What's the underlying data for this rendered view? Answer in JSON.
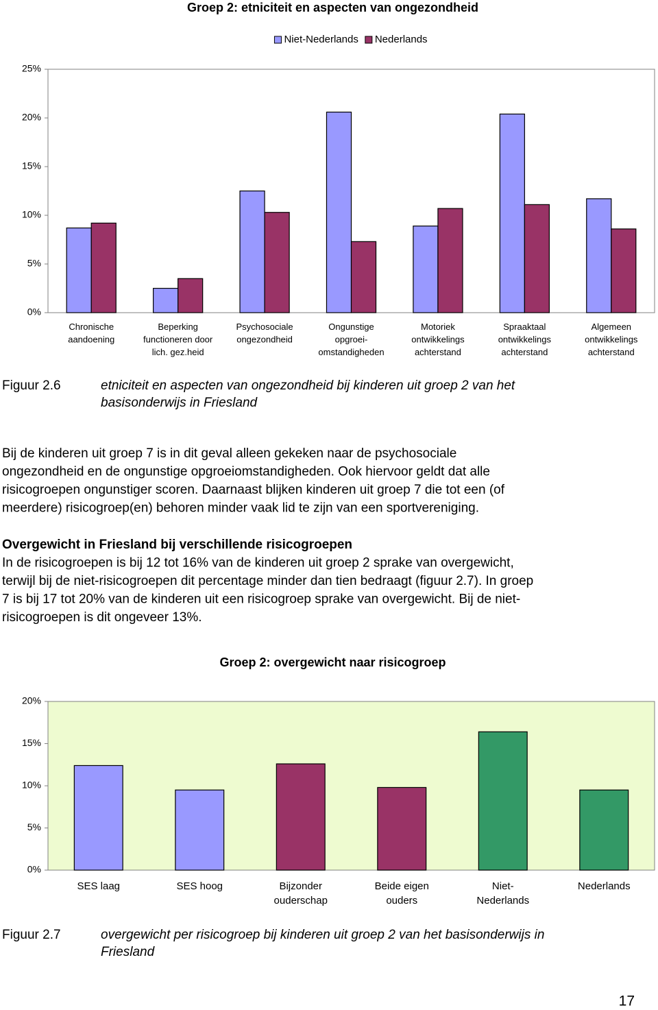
{
  "chart_data": [
    {
      "type": "bar",
      "title": "Groep 2: etniciteit en aspecten van ongezondheid",
      "categories": [
        "Chronische\naandoening",
        "Beperking\nfunctioneren door\nlich. gez.heid",
        "Psychosociale\nongezondheid",
        "Ongunstige\nopgroei-\nomstandigheden",
        "Motoriek\nontwikkelings\nachterstand",
        "Spraaktaal\nontwikkelings\nachterstand",
        "Algemeen\nontwikkelings\nachterstand"
      ],
      "series": [
        {
          "name": "Niet-Nederlands",
          "color": "#9999ff",
          "values": [
            8.7,
            2.5,
            12.5,
            20.6,
            8.9,
            20.4,
            11.7
          ]
        },
        {
          "name": "Nederlands",
          "color": "#993366",
          "values": [
            9.2,
            3.5,
            10.3,
            7.3,
            10.7,
            11.1,
            8.6
          ]
        }
      ],
      "ylim": [
        0,
        25
      ],
      "yticks": [
        {
          "value": 0,
          "label": "0%"
        },
        {
          "value": 5,
          "label": "5%"
        },
        {
          "value": 10,
          "label": "10%"
        },
        {
          "value": 15,
          "label": "15%"
        },
        {
          "value": 20,
          "label": "20%"
        },
        {
          "value": 25,
          "label": "25%"
        }
      ],
      "legend": "top",
      "grid": false,
      "plot_background": "#ffffff"
    },
    {
      "type": "bar",
      "title": "Groep 2: overgewicht naar risicogroep",
      "categories": [
        "SES laag",
        "SES hoog",
        "Bijzonder\nouderschap",
        "Beide eigen\nouders",
        "Niet-\nNederlands",
        "Nederlands"
      ],
      "values": [
        12.4,
        9.5,
        12.6,
        9.8,
        16.4,
        9.5
      ],
      "colors": [
        "#9999ff",
        "#9999ff",
        "#993366",
        "#993366",
        "#339966",
        "#339966"
      ],
      "ylim": [
        0,
        20
      ],
      "yticks": [
        {
          "value": 0,
          "label": "0%"
        },
        {
          "value": 5,
          "label": "5%"
        },
        {
          "value": 10,
          "label": "10%"
        },
        {
          "value": 15,
          "label": "15%"
        },
        {
          "value": 20,
          "label": "20%"
        }
      ],
      "grid": false,
      "plot_background": "#eefbd0"
    }
  ],
  "figure_captions": [
    {
      "label": "Figuur 2.6",
      "lines": [
        "etniciteit en aspecten van ongezondheid bij kinderen uit groep 2 van het",
        "basisonderwijs in Friesland"
      ]
    },
    {
      "label": "Figuur 2.7",
      "lines": [
        "overgewicht per risicogroep bij kinderen uit groep 2 van het basisonderwijs in",
        "Friesland"
      ]
    }
  ],
  "paragraphs": [
    {
      "lines": [
        "Bij de kinderen uit groep 7 is in dit geval alleen gekeken naar de psychosociale",
        "ongezondheid en de ongunstige opgroeiomstandigheden. Ook hiervoor geldt dat alle",
        "risicogroepen ongunstiger scoren. Daarnaast blijken kinderen uit groep 7 die tot een (of",
        "meerdere) risicogroep(en) behoren minder vaak lid te zijn van een sportvereniging."
      ]
    },
    {
      "heading": "Overgewicht in Friesland bij verschillende risicogroepen",
      "lines": [
        "In de risicogroepen is bij 12 tot 16% van de kinderen uit groep 2 sprake van overgewicht,",
        "terwijl bij de niet-risicogroepen dit percentage minder dan tien bedraagt (figuur 2.7). In groep",
        "7 is bij 17 tot 20% van de kinderen uit een risicogroep sprake van overgewicht. Bij de niet-",
        "risicogroepen is dit ongeveer 13%."
      ]
    }
  ],
  "page_number": "17"
}
